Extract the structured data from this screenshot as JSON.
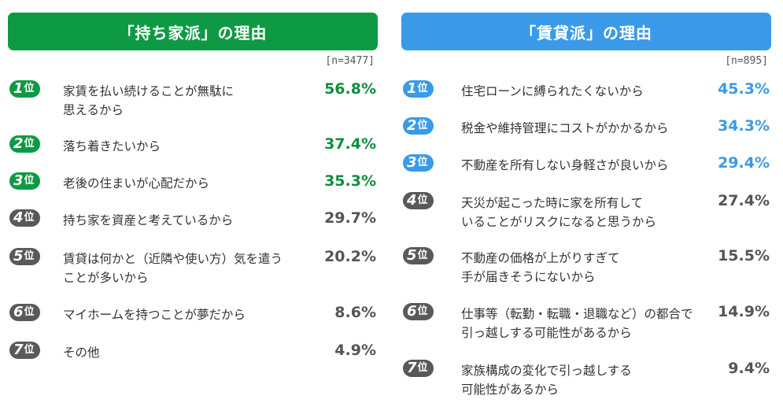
{
  "colors": {
    "green": "#0e9a44",
    "blue": "#3a9ae8",
    "gray": "#595959"
  },
  "rank_unit": "位",
  "chart_data": [
    {
      "type": "table",
      "title": "「持ち家派」の理由",
      "sample": "[n=3477]",
      "items": [
        {
          "rank": "1",
          "reason_lines": [
            "家賃を払い続けることが無駄に",
            "思えるから"
          ],
          "value": "56.8%",
          "percent": 56.8
        },
        {
          "rank": "2",
          "reason_lines": [
            "落ち着きたいから"
          ],
          "value": "37.4%",
          "percent": 37.4
        },
        {
          "rank": "3",
          "reason_lines": [
            "老後の住まいが心配だから"
          ],
          "value": "35.3%",
          "percent": 35.3
        },
        {
          "rank": "4",
          "reason_lines": [
            "持ち家を資産と考えているから"
          ],
          "value": "29.7%",
          "percent": 29.7
        },
        {
          "rank": "5",
          "reason_lines": [
            "賃貸は何かと（近隣や使い方）気を遣う",
            "ことが多いから"
          ],
          "value": "20.2%",
          "percent": 20.2
        },
        {
          "rank": "6",
          "reason_lines": [
            "マイホームを持つことが夢だから"
          ],
          "value": "8.6%",
          "percent": 8.6
        },
        {
          "rank": "7",
          "reason_lines": [
            "その他"
          ],
          "value": "4.9%",
          "percent": 4.9
        }
      ]
    },
    {
      "type": "table",
      "title": "「賃貸派」の理由",
      "sample": "[n=895]",
      "items": [
        {
          "rank": "1",
          "reason_lines": [
            "住宅ローンに縛られたくないから"
          ],
          "value": "45.3%",
          "percent": 45.3
        },
        {
          "rank": "2",
          "reason_lines": [
            "税金や維持管理にコストがかかるから"
          ],
          "value": "34.3%",
          "percent": 34.3
        },
        {
          "rank": "3",
          "reason_lines": [
            "不動産を所有しない身軽さが良いから"
          ],
          "value": "29.4%",
          "percent": 29.4
        },
        {
          "rank": "4",
          "reason_lines": [
            "天災が起こった時に家を所有して",
            "いることがリスクになると思うから"
          ],
          "value": "27.4%",
          "percent": 27.4
        },
        {
          "rank": "5",
          "reason_lines": [
            "不動産の価格が上がりすぎて",
            "手が届きそうにないから"
          ],
          "value": "15.5%",
          "percent": 15.5
        },
        {
          "rank": "6",
          "reason_lines": [
            "仕事等（転勤・転職・退職など）の都合で",
            "引っ越しする可能性があるから"
          ],
          "value": "14.9%",
          "percent": 14.9
        },
        {
          "rank": "7",
          "reason_lines": [
            "家族構成の変化で引っ越しする",
            "可能性があるから"
          ],
          "value": "9.4%",
          "percent": 9.4
        }
      ]
    }
  ]
}
